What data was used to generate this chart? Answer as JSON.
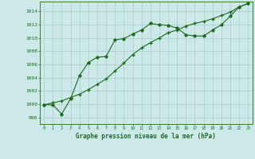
{
  "xlabel": "Graphe pression niveau de la mer (hPa)",
  "bg_color": "#cce8e8",
  "grid_color": "#aacccc",
  "line_color": "#1a6b1a",
  "line1_x": [
    0,
    1,
    2,
    3,
    4,
    5,
    6,
    7,
    8,
    9,
    10,
    11,
    12,
    13,
    14,
    15,
    16,
    17,
    18,
    19,
    20,
    21,
    22,
    23
  ],
  "line1_y": [
    999.9,
    999.9,
    998.5,
    1000.8,
    1004.3,
    1006.3,
    1007.1,
    1007.2,
    1009.7,
    1009.9,
    1010.6,
    1011.2,
    1012.2,
    1012.0,
    1011.9,
    1011.5,
    1010.5,
    1010.3,
    1010.3,
    1011.2,
    1012.0,
    1013.3,
    1014.7,
    1015.2
  ],
  "line2_x": [
    0,
    1,
    2,
    3,
    4,
    5,
    6,
    7,
    8,
    9,
    10,
    11,
    12,
    13,
    14,
    15,
    16,
    17,
    18,
    19,
    20,
    21,
    22,
    23
  ],
  "line2_y": [
    999.9,
    1000.2,
    1000.5,
    1001.0,
    1001.5,
    1002.2,
    1003.0,
    1003.8,
    1005.0,
    1006.2,
    1007.5,
    1008.5,
    1009.3,
    1010.0,
    1010.8,
    1011.2,
    1011.8,
    1012.2,
    1012.5,
    1012.9,
    1013.4,
    1013.9,
    1014.7,
    1015.2
  ],
  "ylim": [
    997.0,
    1015.5
  ],
  "xlim": [
    -0.5,
    23.5
  ],
  "yticks": [
    998,
    1000,
    1002,
    1004,
    1006,
    1008,
    1010,
    1012,
    1014
  ],
  "xticks": [
    0,
    1,
    2,
    3,
    4,
    5,
    6,
    7,
    8,
    9,
    10,
    11,
    12,
    13,
    14,
    15,
    16,
    17,
    18,
    19,
    20,
    21,
    22,
    23
  ],
  "ylabel_fontsize": 4.5,
  "xlabel_fontsize": 5.5,
  "marker1": "*",
  "marker2": "+"
}
